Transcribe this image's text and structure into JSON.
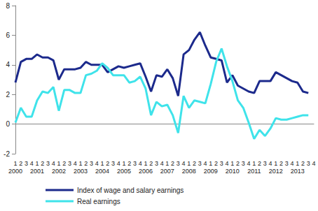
{
  "chart_data": {
    "type": "line",
    "categories": [
      "1\n2000",
      "2",
      "3",
      "4",
      "1\n2001",
      "2",
      "3",
      "4",
      "1\n2002",
      "2",
      "3",
      "4",
      "1\n2003",
      "2",
      "3",
      "4",
      "1\n2004",
      "2",
      "3",
      "4",
      "1\n2005",
      "2",
      "3",
      "4",
      "1\n2006",
      "2",
      "3",
      "4",
      "1\n2007",
      "2",
      "3",
      "4",
      "1\n2008",
      "2",
      "3",
      "4",
      "1\n2009",
      "2",
      "3",
      "4",
      "1\n2010",
      "2",
      "3",
      "4",
      "1\n2011",
      "2",
      "3",
      "4",
      "1\n2012",
      "2",
      "3",
      "4",
      "1\n2013",
      "2",
      "3",
      "4"
    ],
    "series": [
      {
        "name": "Index of wage and salary earnings",
        "color": "#1c2a8c",
        "values": [
          2.8,
          4.2,
          4.4,
          4.4,
          4.7,
          4.5,
          4.5,
          4.3,
          3.0,
          3.7,
          3.7,
          3.7,
          3.8,
          4.2,
          4.0,
          4.0,
          4.0,
          3.5,
          3.7,
          3.9,
          3.8,
          3.9,
          4.0,
          4.1,
          3.2,
          2.2,
          3.3,
          3.2,
          3.7,
          3.1,
          1.9,
          4.7,
          5.0,
          5.7,
          6.2,
          5.3,
          4.5,
          4.4,
          4.3,
          2.8,
          3.3,
          2.6,
          2.4,
          2.2,
          2.1,
          2.9,
          2.9,
          2.9,
          3.5,
          3.3,
          3.1,
          2.9,
          2.8,
          2.2,
          2.1,
          null
        ]
      },
      {
        "name": "Real earnings",
        "color": "#3fe3ea",
        "values": [
          0.1,
          1.1,
          0.5,
          0.5,
          1.6,
          2.2,
          2.1,
          2.5,
          0.9,
          2.3,
          2.3,
          2.1,
          2.1,
          3.3,
          3.4,
          3.6,
          4.1,
          3.8,
          3.3,
          3.3,
          3.3,
          2.8,
          2.9,
          3.2,
          2.4,
          0.6,
          1.5,
          1.2,
          1.3,
          0.6,
          -0.6,
          1.9,
          1.1,
          1.6,
          1.5,
          1.4,
          2.7,
          4.2,
          5.1,
          3.9,
          2.9,
          1.6,
          1.1,
          0.1,
          -1.0,
          -0.4,
          -0.8,
          -0.3,
          0.4,
          0.3,
          0.3,
          0.4,
          0.5,
          0.6,
          0.6,
          null
        ]
      }
    ],
    "ylim": [
      -2,
      8
    ],
    "yticks": [
      -2,
      0,
      2,
      4,
      6,
      8
    ],
    "grid": false,
    "legend": "bottom-left"
  }
}
